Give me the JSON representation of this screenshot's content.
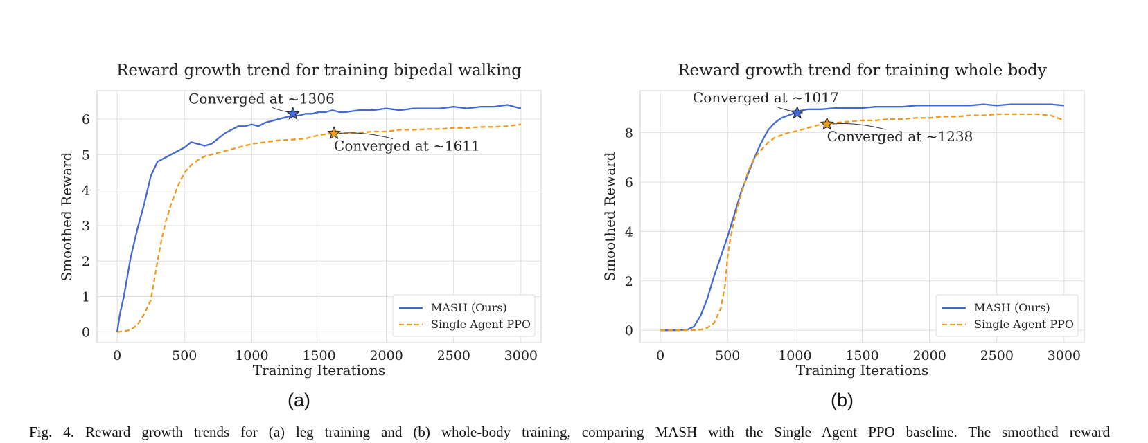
{
  "subplot_labels": [
    "(a)",
    "(b)"
  ],
  "caption": "Fig. 4.  Reward growth trends for (a) leg training and (b) whole-body training, comparing MASH with the Single Agent PPO baseline. The smoothed reward",
  "colors": {
    "mash": "#4169d6",
    "ppo": "#f09a1a",
    "grid": "#dedede",
    "frame": "#cfcfcf",
    "text": "#222222"
  },
  "chart_data": [
    {
      "type": "line",
      "title": "Reward growth trend for training bipedal walking",
      "xlabel": "Training Iterations",
      "ylabel": "Smoothed Reward",
      "xlim": [
        -150,
        3150
      ],
      "ylim": [
        -0.3,
        6.8
      ],
      "xticks": [
        0,
        500,
        1000,
        1500,
        2000,
        2500,
        3000
      ],
      "yticks": [
        0,
        1,
        2,
        3,
        4,
        5,
        6
      ],
      "grid": true,
      "legend_position": "lower-right",
      "series": [
        {
          "name": "MASH (Ours)",
          "style": "solid",
          "x": [
            0,
            20,
            50,
            100,
            150,
            200,
            250,
            300,
            350,
            400,
            450,
            500,
            550,
            600,
            650,
            700,
            750,
            800,
            850,
            900,
            950,
            1000,
            1050,
            1100,
            1150,
            1200,
            1250,
            1300,
            1350,
            1400,
            1450,
            1500,
            1550,
            1600,
            1650,
            1700,
            1800,
            1900,
            2000,
            2100,
            2200,
            2300,
            2400,
            2500,
            2600,
            2700,
            2800,
            2900,
            2950,
            3000
          ],
          "y": [
            0.0,
            0.5,
            1.0,
            2.1,
            2.9,
            3.6,
            4.4,
            4.8,
            4.9,
            5.0,
            5.1,
            5.2,
            5.35,
            5.3,
            5.25,
            5.3,
            5.45,
            5.6,
            5.7,
            5.8,
            5.8,
            5.85,
            5.8,
            5.9,
            5.95,
            6.0,
            6.05,
            6.1,
            6.1,
            6.15,
            6.15,
            6.2,
            6.2,
            6.25,
            6.2,
            6.2,
            6.25,
            6.25,
            6.3,
            6.25,
            6.3,
            6.3,
            6.3,
            6.35,
            6.3,
            6.35,
            6.35,
            6.4,
            6.35,
            6.3
          ]
        },
        {
          "name": "Single Agent PPO",
          "style": "dashed",
          "x": [
            0,
            50,
            100,
            150,
            200,
            250,
            300,
            330,
            360,
            400,
            450,
            500,
            550,
            600,
            650,
            700,
            750,
            800,
            850,
            900,
            950,
            1000,
            1100,
            1200,
            1300,
            1400,
            1500,
            1600,
            1700,
            1800,
            1900,
            2000,
            2100,
            2200,
            2300,
            2400,
            2500,
            2600,
            2700,
            2800,
            2900,
            3000
          ],
          "y": [
            0.0,
            0.02,
            0.06,
            0.2,
            0.5,
            0.9,
            2.0,
            2.6,
            3.1,
            3.6,
            4.1,
            4.5,
            4.7,
            4.85,
            4.95,
            5.0,
            5.05,
            5.1,
            5.15,
            5.2,
            5.25,
            5.3,
            5.35,
            5.4,
            5.42,
            5.45,
            5.55,
            5.6,
            5.6,
            5.62,
            5.65,
            5.65,
            5.7,
            5.7,
            5.72,
            5.72,
            5.75,
            5.75,
            5.78,
            5.78,
            5.8,
            5.85
          ]
        }
      ],
      "annotations": [
        {
          "text": "Converged at ~1306",
          "x": 1306,
          "y": 6.15,
          "series": 0,
          "position": "above-left"
        },
        {
          "text": "Converged at ~1611",
          "x": 1611,
          "y": 5.6,
          "series": 1,
          "position": "below-right"
        }
      ]
    },
    {
      "type": "line",
      "title": "Reward growth trend for training whole body",
      "xlabel": "Training Iterations",
      "ylabel": "Smoothed Reward",
      "xlim": [
        -150,
        3150
      ],
      "ylim": [
        -0.5,
        9.7
      ],
      "xticks": [
        0,
        500,
        1000,
        1500,
        2000,
        2500,
        3000
      ],
      "yticks": [
        0,
        2,
        4,
        6,
        8
      ],
      "grid": true,
      "legend_position": "lower-right",
      "series": [
        {
          "name": "MASH (Ours)",
          "style": "solid",
          "x": [
            0,
            100,
            200,
            250,
            300,
            350,
            400,
            450,
            500,
            550,
            600,
            650,
            700,
            750,
            800,
            850,
            900,
            950,
            1000,
            1050,
            1100,
            1200,
            1300,
            1400,
            1500,
            1600,
            1700,
            1800,
            1900,
            2000,
            2100,
            2200,
            2300,
            2400,
            2500,
            2600,
            2700,
            2800,
            2900,
            3000
          ],
          "y": [
            0.0,
            0.0,
            0.02,
            0.15,
            0.6,
            1.3,
            2.2,
            3.0,
            3.8,
            4.7,
            5.6,
            6.3,
            7.0,
            7.6,
            8.1,
            8.4,
            8.6,
            8.7,
            8.8,
            8.9,
            8.95,
            8.95,
            9.0,
            9.0,
            9.0,
            9.05,
            9.05,
            9.05,
            9.1,
            9.1,
            9.1,
            9.1,
            9.1,
            9.15,
            9.1,
            9.15,
            9.15,
            9.15,
            9.15,
            9.1
          ]
        },
        {
          "name": "Single Agent PPO",
          "style": "dashed",
          "x": [
            0,
            100,
            200,
            300,
            350,
            400,
            450,
            480,
            500,
            520,
            550,
            600,
            650,
            700,
            750,
            800,
            850,
            900,
            950,
            1000,
            1100,
            1200,
            1300,
            1400,
            1500,
            1600,
            1700,
            1800,
            1900,
            2000,
            2100,
            2200,
            2300,
            2400,
            2500,
            2600,
            2700,
            2800,
            2900,
            3000
          ],
          "y": [
            0.0,
            0.0,
            0.0,
            0.02,
            0.1,
            0.3,
            0.9,
            1.8,
            3.0,
            3.7,
            4.5,
            5.5,
            6.4,
            7.0,
            7.3,
            7.6,
            7.8,
            7.9,
            8.0,
            8.05,
            8.2,
            8.35,
            8.4,
            8.45,
            8.5,
            8.5,
            8.55,
            8.55,
            8.6,
            8.6,
            8.65,
            8.65,
            8.7,
            8.7,
            8.75,
            8.75,
            8.75,
            8.75,
            8.7,
            8.5
          ]
        }
      ],
      "annotations": [
        {
          "text": "Converged at ~1017",
          "x": 1017,
          "y": 8.8,
          "series": 0,
          "position": "above-left"
        },
        {
          "text": "Converged at ~1238",
          "x": 1238,
          "y": 8.35,
          "series": 1,
          "position": "below-right"
        }
      ]
    }
  ]
}
